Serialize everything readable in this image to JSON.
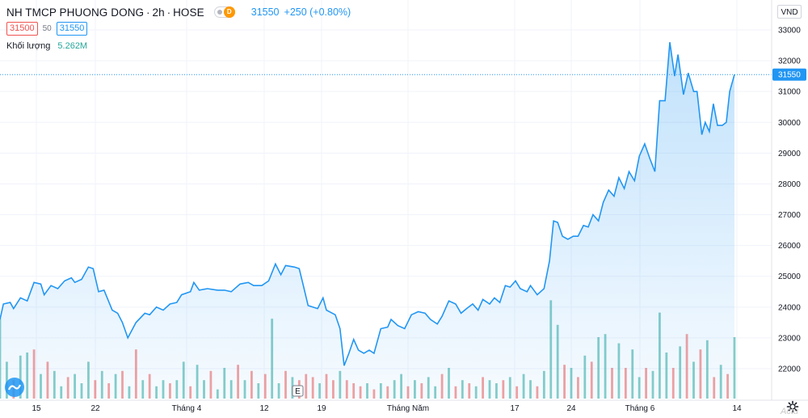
{
  "legend": {
    "symbol_title": "NH TMCP PHUONG DONG",
    "interval": "2h",
    "exchange": "HOSE",
    "separator": "·",
    "badge_letter": "D",
    "last_price": "31550",
    "change": "+250 (+0.80%)",
    "bid": "31500",
    "spread": "50",
    "ask": "31550",
    "volume_label": "Khối lượng",
    "volume_value": "5.262M"
  },
  "currency": "VND",
  "price_axis": {
    "ticks": [
      "33000",
      "32000",
      "31000",
      "30000",
      "29000",
      "28000",
      "27000",
      "26000",
      "25000",
      "24000",
      "23000",
      "22000"
    ],
    "current_label": "31550"
  },
  "time_axis": {
    "labels": [
      "15",
      "22",
      "Tháng 4",
      "12",
      "19",
      "Tháng Năm",
      "17",
      "24",
      "Tháng 6",
      "14"
    ]
  },
  "event_marker": "E",
  "watermark": "Actu",
  "colors": {
    "line": "#2196f3",
    "area_top": "#2196f3",
    "vol_up": "#26a69a",
    "vol_down": "#ef5350",
    "grid": "#f0f3fa",
    "axis_label_bg": "#2196f3"
  },
  "chart_data": {
    "type": "area",
    "ylim": [
      21000,
      33500
    ],
    "price_series": [
      {
        "x": 0,
        "y": 23600
      },
      {
        "x": 0.5,
        "y": 24100
      },
      {
        "x": 1.5,
        "y": 24150
      },
      {
        "x": 2,
        "y": 23950
      },
      {
        "x": 3,
        "y": 24300
      },
      {
        "x": 4,
        "y": 24200
      },
      {
        "x": 5,
        "y": 24800
      },
      {
        "x": 6,
        "y": 24750
      },
      {
        "x": 6.5,
        "y": 24400
      },
      {
        "x": 7.5,
        "y": 24700
      },
      {
        "x": 8.5,
        "y": 24600
      },
      {
        "x": 9.5,
        "y": 24850
      },
      {
        "x": 10.5,
        "y": 24950
      },
      {
        "x": 11,
        "y": 24800
      },
      {
        "x": 12,
        "y": 24900
      },
      {
        "x": 13,
        "y": 25300
      },
      {
        "x": 13.7,
        "y": 25250
      },
      {
        "x": 14.5,
        "y": 24500
      },
      {
        "x": 15.3,
        "y": 24550
      },
      {
        "x": 16.5,
        "y": 23900
      },
      {
        "x": 17.3,
        "y": 23800
      },
      {
        "x": 18,
        "y": 23500
      },
      {
        "x": 18.8,
        "y": 23000
      },
      {
        "x": 20,
        "y": 23500
      },
      {
        "x": 21.3,
        "y": 23800
      },
      {
        "x": 22,
        "y": 23750
      },
      {
        "x": 23,
        "y": 24000
      },
      {
        "x": 24,
        "y": 23900
      },
      {
        "x": 25,
        "y": 24100
      },
      {
        "x": 26,
        "y": 24150
      },
      {
        "x": 26.7,
        "y": 24400
      },
      {
        "x": 28,
        "y": 24500
      },
      {
        "x": 28.5,
        "y": 24800
      },
      {
        "x": 29.3,
        "y": 24550
      },
      {
        "x": 30.5,
        "y": 24600
      },
      {
        "x": 32,
        "y": 24550
      },
      {
        "x": 33,
        "y": 24550
      },
      {
        "x": 34,
        "y": 24500
      },
      {
        "x": 35.3,
        "y": 24750
      },
      {
        "x": 36.5,
        "y": 24800
      },
      {
        "x": 37.3,
        "y": 24700
      },
      {
        "x": 38.5,
        "y": 24700
      },
      {
        "x": 39.5,
        "y": 24850
      },
      {
        "x": 40.5,
        "y": 25400
      },
      {
        "x": 41.3,
        "y": 25050
      },
      {
        "x": 42,
        "y": 25350
      },
      {
        "x": 43.3,
        "y": 25300
      },
      {
        "x": 44,
        "y": 25250
      },
      {
        "x": 44.6,
        "y": 24700
      },
      {
        "x": 45.3,
        "y": 24050
      },
      {
        "x": 46.7,
        "y": 23950
      },
      {
        "x": 47.5,
        "y": 24300
      },
      {
        "x": 48,
        "y": 23900
      },
      {
        "x": 49.3,
        "y": 23750
      },
      {
        "x": 50,
        "y": 23300
      },
      {
        "x": 50.6,
        "y": 22100
      },
      {
        "x": 51.3,
        "y": 22500
      },
      {
        "x": 52,
        "y": 22950
      },
      {
        "x": 52.7,
        "y": 22600
      },
      {
        "x": 53.5,
        "y": 22500
      },
      {
        "x": 54.3,
        "y": 22600
      },
      {
        "x": 55,
        "y": 22500
      },
      {
        "x": 56,
        "y": 23300
      },
      {
        "x": 57,
        "y": 23350
      },
      {
        "x": 57.5,
        "y": 23600
      },
      {
        "x": 58.5,
        "y": 23400
      },
      {
        "x": 59.5,
        "y": 23300
      },
      {
        "x": 60.5,
        "y": 23750
      },
      {
        "x": 61.5,
        "y": 23850
      },
      {
        "x": 62.5,
        "y": 23800
      },
      {
        "x": 63.3,
        "y": 23600
      },
      {
        "x": 64.3,
        "y": 23450
      },
      {
        "x": 65,
        "y": 23700
      },
      {
        "x": 66,
        "y": 24200
      },
      {
        "x": 67,
        "y": 24100
      },
      {
        "x": 67.8,
        "y": 23800
      },
      {
        "x": 68.6,
        "y": 23950
      },
      {
        "x": 69.5,
        "y": 24100
      },
      {
        "x": 70.3,
        "y": 23900
      },
      {
        "x": 71,
        "y": 24250
      },
      {
        "x": 72,
        "y": 24100
      },
      {
        "x": 72.7,
        "y": 24300
      },
      {
        "x": 73.5,
        "y": 24150
      },
      {
        "x": 74.3,
        "y": 24700
      },
      {
        "x": 75,
        "y": 24650
      },
      {
        "x": 75.8,
        "y": 24850
      },
      {
        "x": 76.5,
        "y": 24600
      },
      {
        "x": 77.5,
        "y": 24500
      },
      {
        "x": 78,
        "y": 24700
      },
      {
        "x": 79,
        "y": 24400
      },
      {
        "x": 80,
        "y": 24600
      },
      {
        "x": 80.8,
        "y": 25500
      },
      {
        "x": 81.4,
        "y": 26800
      },
      {
        "x": 82,
        "y": 26750
      },
      {
        "x": 82.7,
        "y": 26300
      },
      {
        "x": 83.5,
        "y": 26200
      },
      {
        "x": 84.3,
        "y": 26300
      },
      {
        "x": 85,
        "y": 26300
      },
      {
        "x": 85.8,
        "y": 26650
      },
      {
        "x": 86.5,
        "y": 26600
      },
      {
        "x": 87.2,
        "y": 27000
      },
      {
        "x": 88,
        "y": 26800
      },
      {
        "x": 88.7,
        "y": 27400
      },
      {
        "x": 89.5,
        "y": 27800
      },
      {
        "x": 90.3,
        "y": 27600
      },
      {
        "x": 91,
        "y": 28200
      },
      {
        "x": 91.8,
        "y": 27850
      },
      {
        "x": 92.5,
        "y": 28400
      },
      {
        "x": 93.3,
        "y": 28100
      },
      {
        "x": 94,
        "y": 28900
      },
      {
        "x": 94.8,
        "y": 29300
      },
      {
        "x": 95.6,
        "y": 28800
      },
      {
        "x": 96.3,
        "y": 28400
      },
      {
        "x": 97,
        "y": 30700
      },
      {
        "x": 97.8,
        "y": 30700
      },
      {
        "x": 98.5,
        "y": 32600
      },
      {
        "x": 99.2,
        "y": 31500
      },
      {
        "x": 99.7,
        "y": 32200
      },
      {
        "x": 100.5,
        "y": 30900
      },
      {
        "x": 101.2,
        "y": 31600
      },
      {
        "x": 102,
        "y": 31000
      },
      {
        "x": 102.5,
        "y": 31000
      },
      {
        "x": 103.2,
        "y": 29600
      },
      {
        "x": 103.7,
        "y": 30000
      },
      {
        "x": 104.3,
        "y": 29700
      },
      {
        "x": 104.9,
        "y": 30600
      },
      {
        "x": 105.5,
        "y": 29900
      },
      {
        "x": 106.2,
        "y": 29900
      },
      {
        "x": 106.8,
        "y": 30000
      },
      {
        "x": 107.3,
        "y": 31000
      },
      {
        "x": 108,
        "y": 31550
      }
    ],
    "volume_series": [
      {
        "x": 0,
        "v": 2.6,
        "up": true
      },
      {
        "x": 1,
        "v": 1.2,
        "up": true
      },
      {
        "x": 2,
        "v": 0.6,
        "up": false
      },
      {
        "x": 3,
        "v": 1.4,
        "up": true
      },
      {
        "x": 4,
        "v": 1.5,
        "up": true
      },
      {
        "x": 5,
        "v": 1.6,
        "up": false
      },
      {
        "x": 6,
        "v": 0.8,
        "up": true
      },
      {
        "x": 7,
        "v": 1.2,
        "up": false
      },
      {
        "x": 8,
        "v": 0.9,
        "up": true
      },
      {
        "x": 9,
        "v": 0.4,
        "up": true
      },
      {
        "x": 10,
        "v": 0.7,
        "up": false
      },
      {
        "x": 11,
        "v": 0.8,
        "up": true
      },
      {
        "x": 12,
        "v": 0.5,
        "up": true
      },
      {
        "x": 13,
        "v": 1.2,
        "up": true
      },
      {
        "x": 14,
        "v": 0.6,
        "up": false
      },
      {
        "x": 15,
        "v": 0.9,
        "up": true
      },
      {
        "x": 16,
        "v": 0.5,
        "up": false
      },
      {
        "x": 17,
        "v": 0.8,
        "up": true
      },
      {
        "x": 18,
        "v": 0.9,
        "up": false
      },
      {
        "x": 19,
        "v": 0.4,
        "up": true
      },
      {
        "x": 20,
        "v": 1.6,
        "up": false
      },
      {
        "x": 21,
        "v": 0.6,
        "up": true
      },
      {
        "x": 22,
        "v": 0.8,
        "up": false
      },
      {
        "x": 23,
        "v": 0.4,
        "up": true
      },
      {
        "x": 24,
        "v": 0.6,
        "up": true
      },
      {
        "x": 25,
        "v": 0.5,
        "up": false
      },
      {
        "x": 26,
        "v": 0.6,
        "up": true
      },
      {
        "x": 27,
        "v": 1.2,
        "up": true
      },
      {
        "x": 28,
        "v": 0.4,
        "up": false
      },
      {
        "x": 29,
        "v": 1.1,
        "up": true
      },
      {
        "x": 30,
        "v": 0.6,
        "up": true
      },
      {
        "x": 31,
        "v": 0.9,
        "up": false
      },
      {
        "x": 32,
        "v": 0.3,
        "up": true
      },
      {
        "x": 33,
        "v": 1.0,
        "up": true
      },
      {
        "x": 34,
        "v": 0.6,
        "up": true
      },
      {
        "x": 35,
        "v": 1.1,
        "up": false
      },
      {
        "x": 36,
        "v": 0.6,
        "up": true
      },
      {
        "x": 37,
        "v": 0.9,
        "up": false
      },
      {
        "x": 38,
        "v": 0.5,
        "up": true
      },
      {
        "x": 39,
        "v": 0.8,
        "up": false
      },
      {
        "x": 40,
        "v": 2.6,
        "up": true
      },
      {
        "x": 41,
        "v": 0.5,
        "up": true
      },
      {
        "x": 42,
        "v": 0.9,
        "up": false
      },
      {
        "x": 43,
        "v": 0.7,
        "up": true
      },
      {
        "x": 44,
        "v": 0.6,
        "up": false
      },
      {
        "x": 45,
        "v": 0.8,
        "up": false
      },
      {
        "x": 46,
        "v": 0.7,
        "up": false
      },
      {
        "x": 47,
        "v": 0.5,
        "up": true
      },
      {
        "x": 48,
        "v": 0.8,
        "up": false
      },
      {
        "x": 49,
        "v": 0.6,
        "up": false
      },
      {
        "x": 50,
        "v": 0.9,
        "up": true
      },
      {
        "x": 51,
        "v": 0.6,
        "up": false
      },
      {
        "x": 52,
        "v": 0.5,
        "up": false
      },
      {
        "x": 53,
        "v": 0.4,
        "up": false
      },
      {
        "x": 54,
        "v": 0.5,
        "up": true
      },
      {
        "x": 55,
        "v": 0.3,
        "up": false
      },
      {
        "x": 56,
        "v": 0.5,
        "up": true
      },
      {
        "x": 57,
        "v": 0.4,
        "up": false
      },
      {
        "x": 58,
        "v": 0.6,
        "up": true
      },
      {
        "x": 59,
        "v": 0.8,
        "up": true
      },
      {
        "x": 60,
        "v": 0.4,
        "up": false
      },
      {
        "x": 61,
        "v": 0.6,
        "up": true
      },
      {
        "x": 62,
        "v": 0.5,
        "up": false
      },
      {
        "x": 63,
        "v": 0.7,
        "up": true
      },
      {
        "x": 64,
        "v": 0.4,
        "up": true
      },
      {
        "x": 65,
        "v": 0.8,
        "up": false
      },
      {
        "x": 66,
        "v": 1.0,
        "up": true
      },
      {
        "x": 67,
        "v": 0.4,
        "up": false
      },
      {
        "x": 68,
        "v": 0.6,
        "up": true
      },
      {
        "x": 69,
        "v": 0.5,
        "up": false
      },
      {
        "x": 70,
        "v": 0.4,
        "up": true
      },
      {
        "x": 71,
        "v": 0.7,
        "up": false
      },
      {
        "x": 72,
        "v": 0.6,
        "up": true
      },
      {
        "x": 73,
        "v": 0.5,
        "up": true
      },
      {
        "x": 74,
        "v": 0.6,
        "up": false
      },
      {
        "x": 75,
        "v": 0.7,
        "up": true
      },
      {
        "x": 76,
        "v": 0.4,
        "up": false
      },
      {
        "x": 77,
        "v": 0.8,
        "up": true
      },
      {
        "x": 78,
        "v": 0.6,
        "up": true
      },
      {
        "x": 79,
        "v": 0.4,
        "up": false
      },
      {
        "x": 80,
        "v": 0.9,
        "up": true
      },
      {
        "x": 81,
        "v": 3.2,
        "up": true
      },
      {
        "x": 82,
        "v": 2.4,
        "up": true
      },
      {
        "x": 83,
        "v": 1.1,
        "up": false
      },
      {
        "x": 84,
        "v": 1.0,
        "up": true
      },
      {
        "x": 85,
        "v": 0.7,
        "up": false
      },
      {
        "x": 86,
        "v": 1.4,
        "up": true
      },
      {
        "x": 87,
        "v": 1.2,
        "up": false
      },
      {
        "x": 88,
        "v": 2.0,
        "up": true
      },
      {
        "x": 89,
        "v": 2.1,
        "up": true
      },
      {
        "x": 90,
        "v": 1.0,
        "up": false
      },
      {
        "x": 91,
        "v": 1.8,
        "up": true
      },
      {
        "x": 92,
        "v": 1.0,
        "up": false
      },
      {
        "x": 93,
        "v": 1.6,
        "up": true
      },
      {
        "x": 94,
        "v": 0.7,
        "up": true
      },
      {
        "x": 95,
        "v": 1.0,
        "up": false
      },
      {
        "x": 96,
        "v": 0.9,
        "up": true
      },
      {
        "x": 97,
        "v": 2.8,
        "up": true
      },
      {
        "x": 98,
        "v": 1.5,
        "up": true
      },
      {
        "x": 99,
        "v": 1.0,
        "up": false
      },
      {
        "x": 100,
        "v": 1.7,
        "up": true
      },
      {
        "x": 101,
        "v": 2.1,
        "up": false
      },
      {
        "x": 102,
        "v": 1.2,
        "up": true
      },
      {
        "x": 103,
        "v": 1.6,
        "up": false
      },
      {
        "x": 104,
        "v": 1.9,
        "up": true
      },
      {
        "x": 105,
        "v": 0.7,
        "up": false
      },
      {
        "x": 106,
        "v": 1.1,
        "up": true
      },
      {
        "x": 107,
        "v": 0.8,
        "up": false
      },
      {
        "x": 108,
        "v": 2.0,
        "up": true
      }
    ],
    "xlim": [
      0,
      108
    ]
  }
}
